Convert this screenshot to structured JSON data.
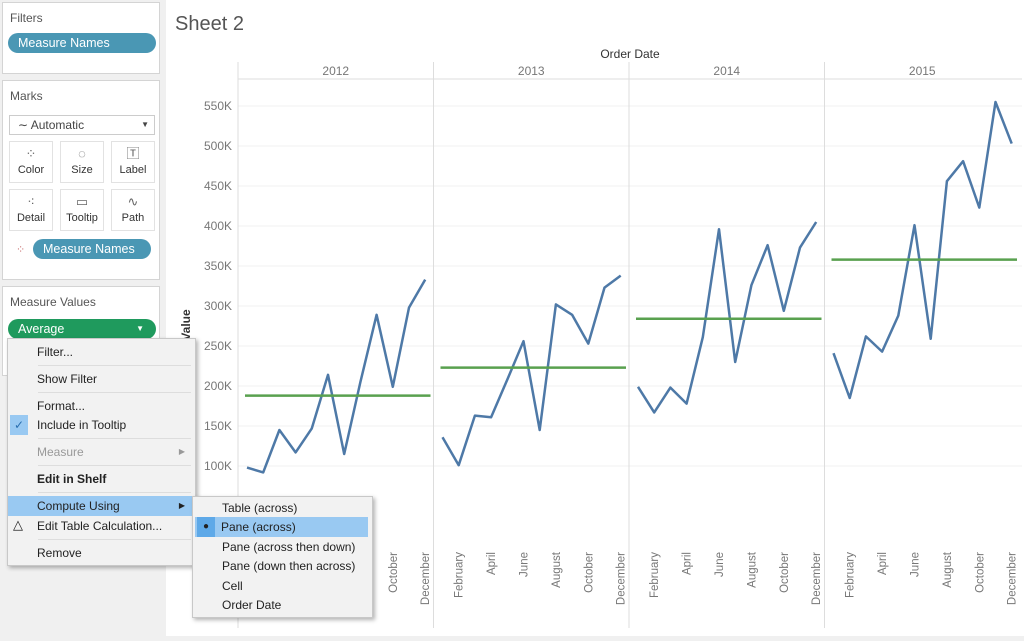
{
  "filters": {
    "title": "Filters",
    "pill": "Measure Names"
  },
  "marks": {
    "title": "Marks",
    "type": "Automatic",
    "buttons": [
      {
        "label": "Color",
        "icon": "color-icon"
      },
      {
        "label": "Size",
        "icon": "size-icon"
      },
      {
        "label": "Label",
        "icon": "label-icon"
      },
      {
        "label": "Detail",
        "icon": "detail-icon"
      },
      {
        "label": "Tooltip",
        "icon": "tooltip-icon"
      },
      {
        "label": "Path",
        "icon": "path-icon"
      }
    ],
    "pill": "Measure Names"
  },
  "measure_values": {
    "title": "Measure Values",
    "pill": "Average"
  },
  "context_menu": {
    "items": [
      "Filter...",
      "Show Filter",
      "Format...",
      "Include in Tooltip",
      "Measure",
      "Edit in Shelf",
      "Compute Using",
      "Edit Table Calculation...",
      "Remove"
    ]
  },
  "submenu": {
    "items": [
      "Table (across)",
      "Pane (across)",
      "Pane (across then down)",
      "Pane (down then across)",
      "Cell",
      "Order Date"
    ],
    "selected": "Pane (across)"
  },
  "sheet": {
    "title": "Sheet 2"
  },
  "chart_data": {
    "type": "line",
    "title": "Order Date",
    "ylabel": "Value",
    "ylim": [
      0,
      575000
    ],
    "yticks": [
      "100K",
      "150K",
      "200K",
      "250K",
      "300K",
      "350K",
      "400K",
      "450K",
      "500K",
      "550K"
    ],
    "panes": [
      "2012",
      "2013",
      "2014",
      "2015"
    ],
    "month_labels": [
      "February",
      "April",
      "June",
      "August",
      "October",
      "December"
    ],
    "colors": {
      "line": "#4e79a7",
      "average": "#59a14f"
    },
    "series": [
      {
        "year": "2012",
        "values": [
          98,
          92,
          145,
          117,
          147,
          214,
          115,
          205,
          289,
          199,
          298,
          333
        ],
        "average": 188
      },
      {
        "year": "2013",
        "values": [
          136,
          101,
          163,
          161,
          208,
          256,
          145,
          302,
          289,
          253,
          323,
          338
        ],
        "average": 223
      },
      {
        "year": "2014",
        "values": [
          199,
          167,
          198,
          178,
          261,
          396,
          230,
          326,
          376,
          294,
          373,
          405
        ],
        "average": 284
      },
      {
        "year": "2015",
        "values": [
          241,
          185,
          262,
          243,
          288,
          401,
          259,
          456,
          481,
          423,
          555,
          503
        ],
        "average": 358
      }
    ],
    "value_unit": "thousands"
  }
}
